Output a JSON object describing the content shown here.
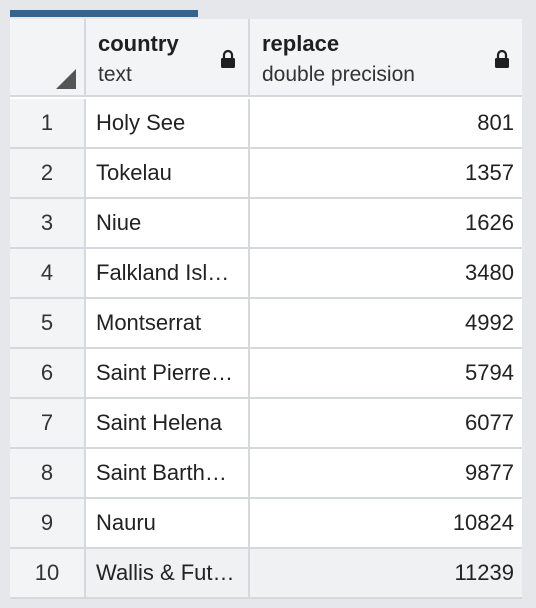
{
  "columns": [
    {
      "name": "country",
      "type": "text"
    },
    {
      "name": "replace",
      "type": "double precision"
    }
  ],
  "rows": [
    {
      "num": "1",
      "country": "Holy See",
      "value": "801"
    },
    {
      "num": "2",
      "country": "Tokelau",
      "value": "1357"
    },
    {
      "num": "3",
      "country": "Niue",
      "value": "1626"
    },
    {
      "num": "4",
      "country": "Falkland Isl…",
      "value": "3480"
    },
    {
      "num": "5",
      "country": "Montserrat",
      "value": "4992"
    },
    {
      "num": "6",
      "country": "Saint Pierre…",
      "value": "5794"
    },
    {
      "num": "7",
      "country": "Saint Helena",
      "value": "6077"
    },
    {
      "num": "8",
      "country": "Saint Barth…",
      "value": "9877"
    },
    {
      "num": "9",
      "country": "Nauru",
      "value": "10824"
    },
    {
      "num": "10",
      "country": "Wallis & Fut…",
      "value": "11239"
    }
  ],
  "colors": {
    "active_tab": "#326690",
    "header_bg": "#f3f4f6",
    "grid_line": "#d5d8dc"
  },
  "icons": {
    "lock": "lock-icon",
    "sort": "sort-corner-icon"
  }
}
